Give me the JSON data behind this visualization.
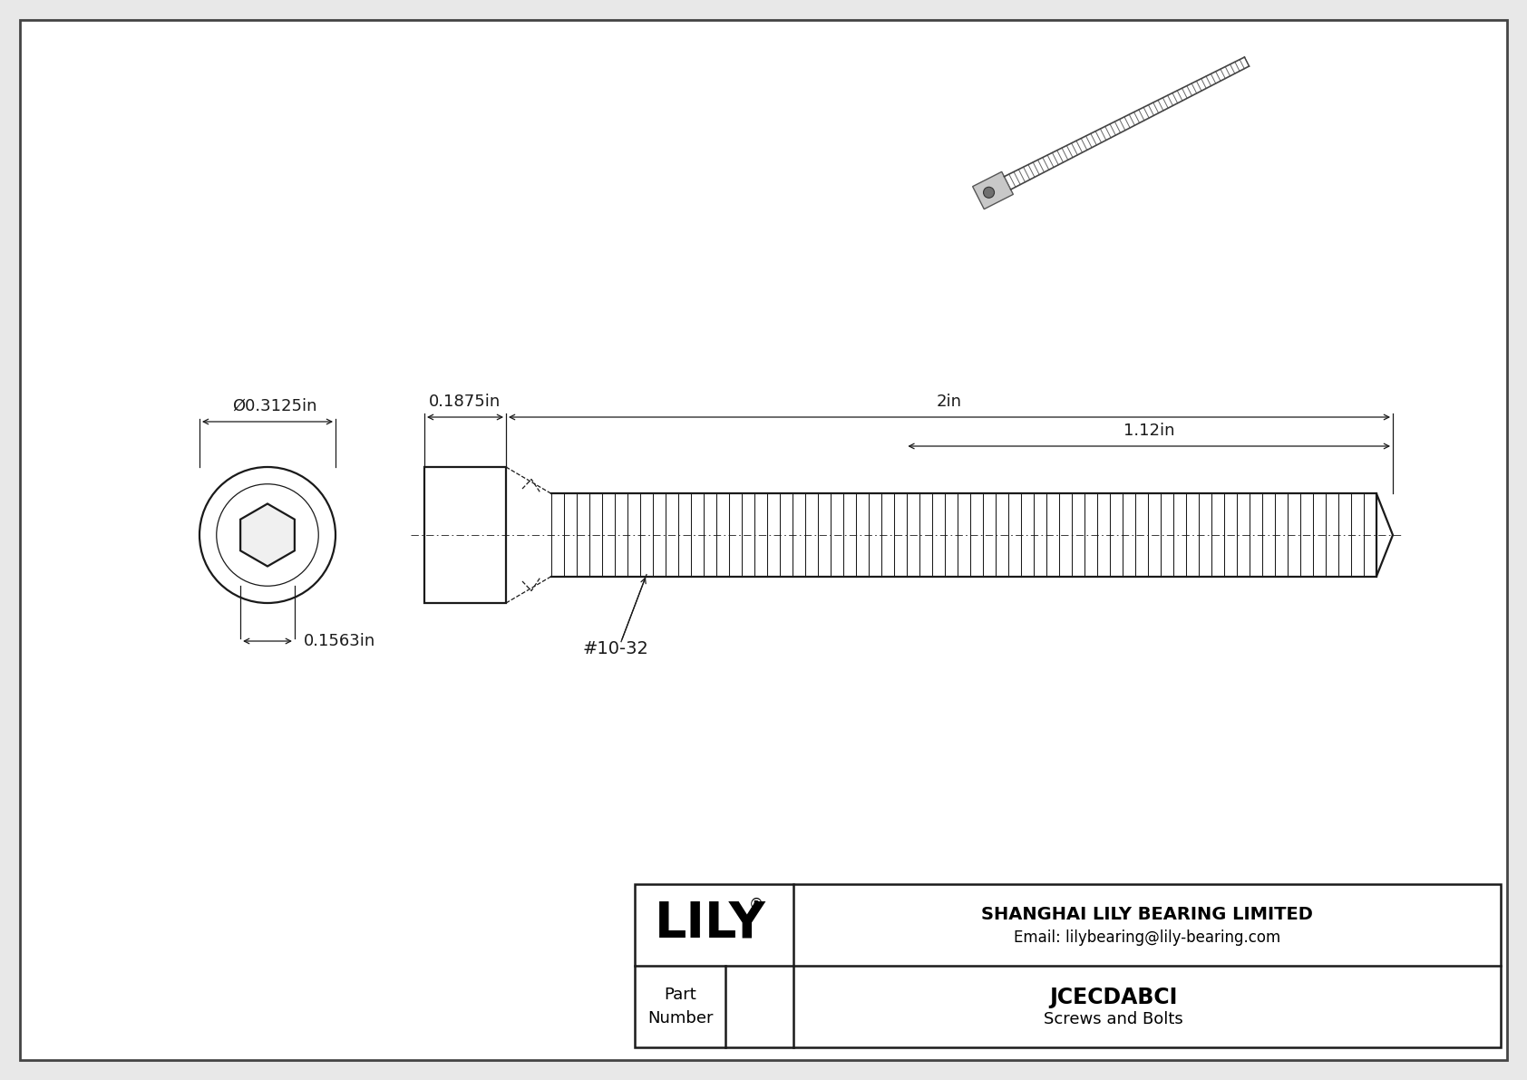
{
  "bg_color": "#e8e8e8",
  "inner_bg": "#ffffff",
  "border_color": "#555555",
  "line_color": "#1a1a1a",
  "dim_color": "#1a1a1a",
  "title": "JCECDABCI",
  "subtitle": "Screws and Bolts",
  "company": "SHANGHAI LILY BEARING LIMITED",
  "email": "Email: lilybearing@lily-bearing.com",
  "part_label": "Part\nNumber",
  "dim_head_diam": "Ø0.3125in",
  "dim_head_length": "0.1875in",
  "dim_thread_length": "2in",
  "dim_grip": "1.12in",
  "dim_hex": "0.1563in",
  "thread_label": "#10-32",
  "logo_text": "LILY",
  "logo_super": "®",
  "fig_width": 16.84,
  "fig_height": 11.91,
  "dpi": 100
}
